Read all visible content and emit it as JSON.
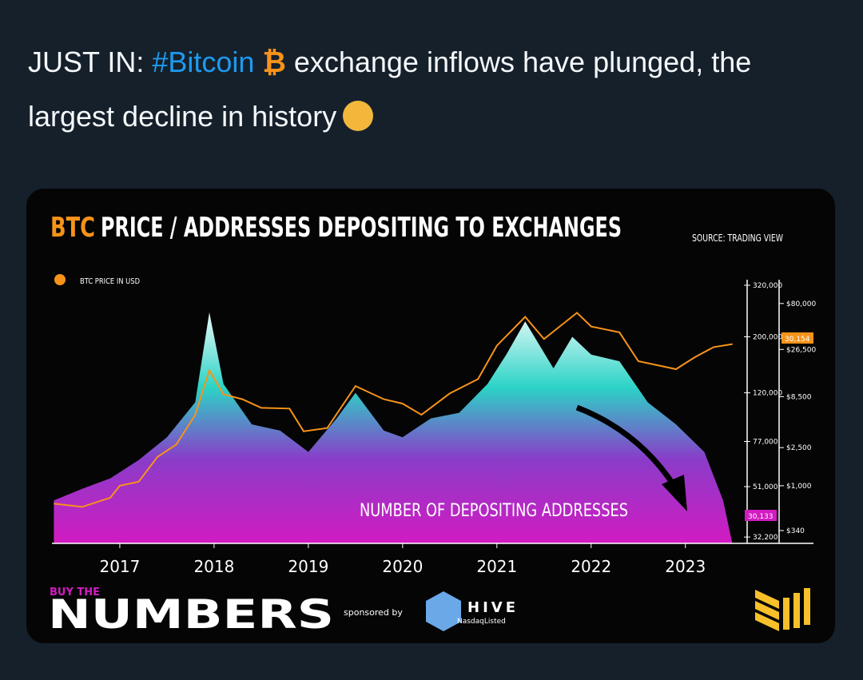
{
  "tweet": {
    "prefix": "JUST IN:",
    "hashtag": "#Bitcoin",
    "bitcoin_emoji": "₿",
    "text": "exchange inflows have plunged, the largest decline in history"
  },
  "card": {
    "title_highlight": "BTC",
    "title_rest": "PRICE / ADDRESSES DEPOSITING TO EXCHANGES",
    "source": "SOURCE: TRADING VIEW",
    "highlight_labels": [
      "30,154",
      "30,133"
    ],
    "footer": {
      "brand_small": "BUY THE",
      "brand_big": "NUMBERS",
      "sponsored": "sponsored by",
      "sponsor": "HIVE",
      "sponsor_sub": "NasdaqListed"
    }
  },
  "chart_data": {
    "type": "line",
    "log_scale": true,
    "xlim": [
      2016.28,
      2023.57
    ],
    "xticks": [
      2017,
      2018,
      2019,
      2020,
      2021,
      2022,
      2023
    ],
    "ylim": [
      30400,
      320000
    ],
    "yticks": [
      {
        "value": 320000,
        "label": "320,000"
      },
      {
        "value": 200000,
        "label": "200,000"
      },
      {
        "value": 120000,
        "label": "120,000"
      },
      {
        "value": 77000,
        "label": "77,000"
      },
      {
        "value": 51000,
        "label": "51,000"
      },
      {
        "value": 32200,
        "label": "32,200"
      }
    ],
    "y2lim": [
      250,
      124000
    ],
    "y2ticks": [
      {
        "value": 80000,
        "label": "$80,000"
      },
      {
        "value": 26500,
        "label": "$26,500"
      },
      {
        "value": 8500,
        "label": "$8,500"
      },
      {
        "value": 2500,
        "label": "$2,500"
      },
      {
        "value": 1000,
        "label": "$1,000"
      },
      {
        "value": 340,
        "label": "$340"
      }
    ],
    "series": [
      {
        "name": "BTC PRICE IN USD",
        "type": "line",
        "axis": "y2",
        "color": "#f7931a",
        "x": [
          2016.3,
          2016.6,
          2016.9,
          2017.0,
          2017.2,
          2017.4,
          2017.6,
          2017.8,
          2017.95,
          2018.1,
          2018.3,
          2018.5,
          2018.8,
          2018.95,
          2019.2,
          2019.5,
          2019.8,
          2020.0,
          2020.2,
          2020.5,
          2020.8,
          2021.0,
          2021.3,
          2021.5,
          2021.85,
          2022.0,
          2022.3,
          2022.5,
          2022.9,
          2023.1,
          2023.3,
          2023.5
        ],
        "values": [
          650,
          600,
          750,
          1000,
          1100,
          2000,
          2700,
          5500,
          16000,
          9000,
          8000,
          6500,
          6400,
          3700,
          4000,
          11000,
          8000,
          7200,
          5500,
          9200,
          13000,
          29000,
          58000,
          34000,
          64000,
          46000,
          40000,
          20000,
          16500,
          22000,
          28000,
          30154
        ]
      },
      {
        "name": "NUMBER OF DEPOSITING ADDRESSES",
        "type": "area",
        "axis": "y",
        "color": "#d21bc1",
        "x": [
          2016.3,
          2016.6,
          2016.9,
          2017.2,
          2017.5,
          2017.8,
          2017.95,
          2018.1,
          2018.4,
          2018.7,
          2019.0,
          2019.3,
          2019.5,
          2019.8,
          2020.0,
          2020.3,
          2020.6,
          2020.9,
          2021.1,
          2021.3,
          2021.6,
          2021.8,
          2022.0,
          2022.3,
          2022.6,
          2022.9,
          2023.2,
          2023.4,
          2023.5
        ],
        "values": [
          45000,
          50000,
          55000,
          65000,
          80000,
          110000,
          250000,
          130000,
          90000,
          85000,
          70000,
          95000,
          120000,
          85000,
          80000,
          95000,
          100000,
          130000,
          170000,
          230000,
          150000,
          200000,
          170000,
          160000,
          110000,
          90000,
          70000,
          45000,
          30133
        ]
      }
    ]
  }
}
